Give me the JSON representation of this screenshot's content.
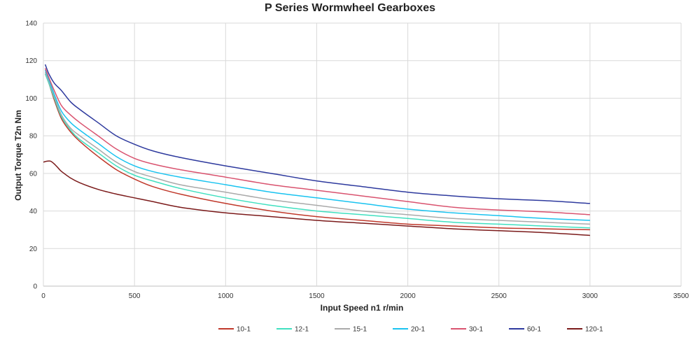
{
  "chart_data": {
    "type": "line",
    "title": "P Series Wormwheel Gearboxes",
    "xlabel": "Input Speed n1 r/min",
    "ylabel": "Output Torque T2n Nm",
    "xlim": [
      0,
      3500
    ],
    "ylim": [
      0,
      140
    ],
    "xticks": [
      0,
      500,
      1000,
      1500,
      2000,
      2500,
      3000,
      3500
    ],
    "yticks": [
      0,
      20,
      40,
      60,
      80,
      100,
      120,
      140
    ],
    "grid": true,
    "legend_position": "bottom",
    "series": [
      {
        "name": "10-1",
        "color": "#c0392b",
        "x": [
          10,
          30,
          60,
          100,
          150,
          200,
          300,
          400,
          500,
          600,
          750,
          1000,
          1250,
          1500,
          1750,
          2000,
          2250,
          2500,
          2750,
          3000
        ],
        "y": [
          113,
          108,
          99,
          89,
          82,
          77,
          69,
          62,
          57,
          53,
          49,
          44,
          40,
          37,
          35,
          33,
          32,
          31,
          30.5,
          30
        ]
      },
      {
        "name": "12-1",
        "color": "#40e0c0",
        "x": [
          10,
          30,
          60,
          100,
          150,
          200,
          300,
          400,
          500,
          600,
          750,
          1000,
          1250,
          1500,
          1750,
          2000,
          2250,
          2500,
          2750,
          3000
        ],
        "y": [
          113,
          108,
          100,
          90,
          83,
          78,
          71,
          64,
          59,
          56,
          52,
          47,
          43,
          40,
          38,
          36,
          34,
          33,
          32,
          31
        ]
      },
      {
        "name": "15-1",
        "color": "#aaaaaa",
        "x": [
          10,
          30,
          60,
          100,
          150,
          200,
          300,
          400,
          500,
          600,
          750,
          1000,
          1250,
          1500,
          1750,
          2000,
          2250,
          2500,
          2750,
          3000
        ],
        "y": [
          114,
          109,
          101,
          91,
          84,
          80,
          73,
          66,
          61,
          58,
          54,
          50,
          46,
          43,
          40,
          38,
          36,
          35,
          34,
          33
        ]
      },
      {
        "name": "20-1",
        "color": "#19c3f0",
        "x": [
          10,
          30,
          60,
          100,
          150,
          200,
          300,
          400,
          500,
          600,
          750,
          1000,
          1250,
          1500,
          1750,
          2000,
          2250,
          2500,
          2750,
          3000
        ],
        "y": [
          115,
          110,
          102,
          93,
          87,
          83,
          76,
          69,
          64,
          61,
          58,
          54,
          50,
          47,
          44,
          41,
          39,
          37.5,
          36,
          35
        ]
      },
      {
        "name": "30-1",
        "color": "#d9536f",
        "x": [
          10,
          30,
          60,
          100,
          150,
          200,
          300,
          400,
          500,
          600,
          750,
          1000,
          1250,
          1500,
          1750,
          2000,
          2250,
          2500,
          2750,
          3000
        ],
        "y": [
          116,
          111,
          104,
          96,
          91,
          87,
          80,
          73,
          68,
          65,
          62,
          58,
          54,
          51,
          48,
          45,
          42,
          40.5,
          39.5,
          38
        ]
      },
      {
        "name": "60-1",
        "color": "#2e3a9e",
        "x": [
          10,
          30,
          60,
          100,
          150,
          200,
          300,
          400,
          500,
          600,
          750,
          1000,
          1250,
          1500,
          1750,
          2000,
          2250,
          2500,
          2750,
          3000
        ],
        "y": [
          118,
          113,
          108,
          104,
          98,
          94,
          87,
          80,
          75.5,
          72,
          68.5,
          64,
          60,
          56,
          53,
          50,
          48,
          46.5,
          45.5,
          44
        ]
      },
      {
        "name": "120-1",
        "color": "#7b1a1a",
        "x": [
          0,
          20,
          40,
          60,
          80,
          100,
          150,
          200,
          300,
          400,
          500,
          600,
          750,
          1000,
          1250,
          1500,
          1750,
          2000,
          2250,
          2500,
          2750,
          3000
        ],
        "y": [
          66,
          66.5,
          66.5,
          65,
          63,
          61,
          57.5,
          55,
          51.5,
          49,
          47,
          45,
          42,
          39,
          37,
          35,
          33.5,
          32,
          30.5,
          29.5,
          28.5,
          27
        ]
      }
    ]
  }
}
